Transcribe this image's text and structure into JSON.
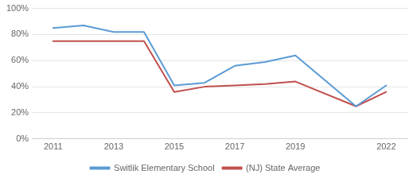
{
  "chart_data": {
    "type": "line",
    "x": [
      2011,
      2012,
      2013,
      2014,
      2015,
      2016,
      2017,
      2018,
      2019,
      2021,
      2022
    ],
    "series": [
      {
        "name": "Switlik Elementary School",
        "color": "#5b9bd5",
        "values": [
          0.85,
          0.87,
          0.82,
          0.82,
          0.41,
          0.43,
          0.56,
          0.59,
          0.64,
          0.25,
          0.41
        ]
      },
      {
        "name": "(NJ) State Average",
        "color": "#c0504d",
        "values": [
          0.75,
          0.75,
          0.75,
          0.75,
          0.36,
          0.4,
          0.41,
          0.42,
          0.44,
          0.25,
          0.36
        ]
      }
    ],
    "xlim": [
      2010.3,
      2022.7
    ],
    "xticks": [
      2011,
      2013,
      2015,
      2017,
      2019,
      2022
    ],
    "ylim": [
      0,
      1.0
    ],
    "yticks": [
      {
        "value": 0,
        "label": "0%"
      },
      {
        "value": 0.2,
        "label": "20%"
      },
      {
        "value": 0.4,
        "label": "40%"
      },
      {
        "value": 0.6,
        "label": "60%"
      },
      {
        "value": 0.8,
        "label": "80%"
      },
      {
        "value": 1.0,
        "label": "100%"
      }
    ],
    "grid": "y",
    "legend": "bottom"
  }
}
